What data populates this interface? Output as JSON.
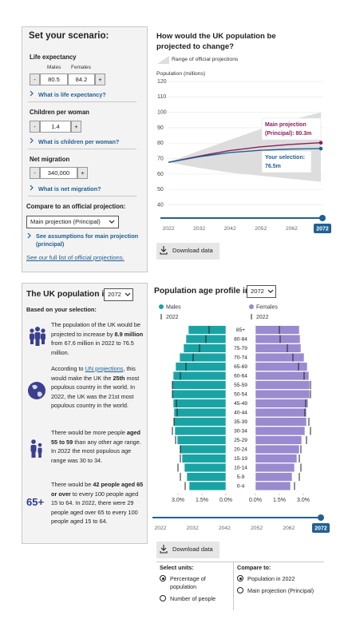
{
  "scenario": {
    "title": "Set your scenario:",
    "stepper": {
      "minus": "-",
      "plus": "+"
    },
    "life_expectancy": {
      "label": "Life expectancy",
      "males_label": "Males",
      "females_label": "Females",
      "males": 80.5,
      "females": 84.2,
      "link": "What is life expectancy?"
    },
    "children_per_woman": {
      "label": "Children per woman",
      "value": 1.4,
      "link": "What is children per woman?"
    },
    "net_migration": {
      "label": "Net migration",
      "value": {
        "value": 340000,
        "label": "340,000"
      },
      "link": "What is net migration?"
    },
    "compare": {
      "label": "Compare to an official projection:",
      "selected": "Main projection (Principal)",
      "assumptions_link": "See assumptions for main projection (principal)",
      "full_list_link": "See our full list of official projections."
    }
  },
  "line_chart": {
    "type": "line",
    "title": "How would the UK population be projected to change?",
    "range_legend": "Range of official projections",
    "y_label": "Population (millions)",
    "x": [
      2022,
      2032,
      2042,
      2052,
      2062,
      2072
    ],
    "range": {
      "color": "#dddddd",
      "upper": [
        67.6,
        75,
        82,
        89,
        95,
        100
      ],
      "lower": [
        67.6,
        64,
        61,
        59,
        57,
        55
      ]
    },
    "series": [
      {
        "color": "#8c1d5a",
        "values": [
          67.6,
          71.6,
          75.2,
          77.6,
          79.2,
          80.3
        ]
      },
      {
        "color": "#206095",
        "values": [
          67.6,
          71.2,
          73.9,
          75.4,
          76.2,
          76.5
        ]
      }
    ],
    "annotations": [
      {
        "lines": [
          "Main projection",
          "(Principal): 80.3m"
        ]
      },
      {
        "lines": [
          "Your selection:",
          "76.5m"
        ]
      }
    ],
    "xlim": [
      2022,
      2072
    ],
    "xticks": [
      2022,
      2032,
      2042,
      2052,
      2062,
      2072
    ],
    "ylim": [
      32,
      120
    ],
    "yticks": [
      40,
      50,
      60,
      70,
      80,
      90,
      100,
      110,
      120
    ],
    "grid": true,
    "selected_year": 2072
  },
  "download": "Download data",
  "summary": {
    "title": "The UK population in",
    "selected": 2072,
    "subtitle": "Based on your selection:",
    "blocks": [
      {
        "segments": [
          {
            "text": "The population of the UK would be projected to increase by "
          },
          {
            "text": "8.9 million",
            "style": "bold"
          },
          {
            "text": " from 67.6 million in 2022 to 76.5 million."
          }
        ]
      },
      {
        "segments": [
          {
            "text": "According to "
          },
          {
            "text": "UN projections",
            "style": "link"
          },
          {
            "text": ", this would make the UK the "
          },
          {
            "text": "25th",
            "style": "bold"
          },
          {
            "text": " most populous country in the world. In 2022, the UK was the 21st most populous country in the world."
          }
        ]
      },
      {
        "segments": [
          {
            "text": "There would be more people "
          },
          {
            "text": "aged 55 to 59",
            "style": "bold"
          },
          {
            "text": " than any other age range. In 2022 the most populous age range was 30 to 34."
          }
        ]
      },
      {
        "icon_text": "65+",
        "segments": [
          {
            "text": "There would be "
          },
          {
            "text": "42 people aged 65 or over",
            "style": "bold"
          },
          {
            "text": " to every 100 people aged 15 to 64. In 2022, there were 29 people aged over 65 to every 100 people aged 15 to 64."
          }
        ]
      }
    ]
  },
  "pyramid": {
    "type": "pyramid",
    "title": "Population age profile in",
    "selected": 2072,
    "categories": [
      "85+",
      "80-84",
      "75-79",
      "70-74",
      "65-69",
      "60-64",
      "55-59",
      "50-54",
      "45-49",
      "40-44",
      "35-39",
      "30-34",
      "25-29",
      "20-24",
      "15-19",
      "10-14",
      "5-9",
      "0-4"
    ],
    "comparison_name": "2022",
    "series": [
      {
        "name": "Males",
        "color": "#1aa3a4",
        "values": [
          2.35,
          2.5,
          2.65,
          2.9,
          3.15,
          3.3,
          3.35,
          3.35,
          3.3,
          3.25,
          3.25,
          3.2,
          3.05,
          2.9,
          2.75,
          2.6,
          2.45,
          2.3
        ],
        "comparison": [
          1.05,
          1.25,
          1.65,
          2.05,
          2.5,
          2.85,
          3.35,
          3.35,
          3.1,
          3.05,
          3.25,
          3.35,
          3.15,
          2.85,
          2.85,
          3.0,
          2.85,
          2.55
        ]
      },
      {
        "name": "Females",
        "color": "#9a8ad0",
        "values": [
          2.75,
          2.8,
          2.85,
          3.05,
          3.25,
          3.35,
          3.4,
          3.4,
          3.3,
          3.2,
          3.2,
          3.1,
          2.9,
          2.75,
          2.6,
          2.45,
          2.3,
          2.2
        ],
        "comparison": [
          1.5,
          1.55,
          2.0,
          2.35,
          2.7,
          3.05,
          3.45,
          3.45,
          3.15,
          3.1,
          3.35,
          3.45,
          3.2,
          2.85,
          2.75,
          2.85,
          2.75,
          2.45
        ]
      }
    ],
    "xlim": [
      0,
      3.7
    ],
    "xticks": [
      {
        "value": 3,
        "label": "3.0%"
      },
      {
        "value": 1.5,
        "label": "1.5%"
      },
      {
        "value": 0,
        "label": "0.0%"
      }
    ],
    "slider": {
      "ticks": [
        2022,
        2032,
        2042,
        2052,
        2062,
        2072
      ],
      "selected": 2072
    }
  },
  "options": {
    "units": {
      "label": "Select units:",
      "choices": [
        "Percentage of population",
        "Number of people"
      ],
      "selected": 0
    },
    "compare": {
      "label": "Compare to:",
      "choices": [
        "Population in 2022",
        "Main projection (Principal)"
      ],
      "selected": 0
    }
  }
}
